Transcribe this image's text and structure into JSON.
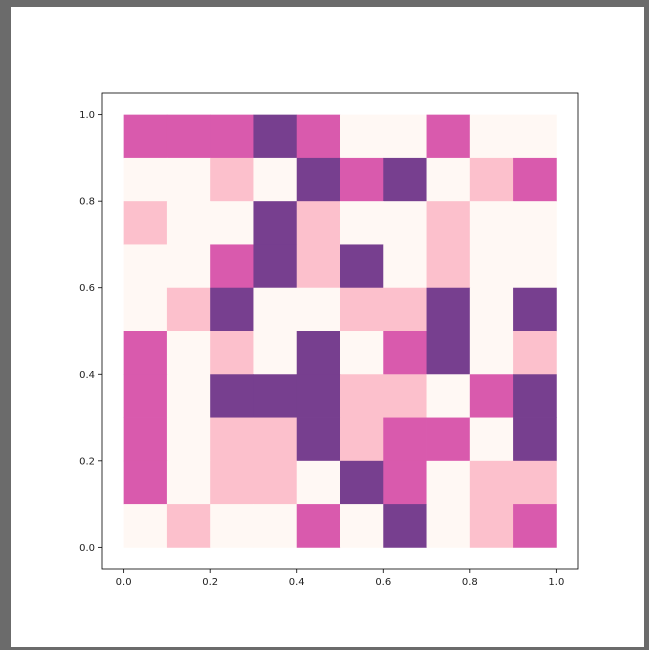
{
  "chart_data": {
    "type": "heatmap",
    "title": "",
    "xlabel": "",
    "ylabel": "",
    "xlim": [
      -0.05,
      1.05
    ],
    "ylim": [
      -0.05,
      1.05
    ],
    "xticks": [
      "0.0",
      "0.2",
      "0.4",
      "0.6",
      "0.8",
      "1.0"
    ],
    "yticks": [
      "0.0",
      "0.2",
      "0.4",
      "0.6",
      "0.8",
      "1.0"
    ],
    "grid": false,
    "cell_extent": [
      0,
      1,
      0,
      1
    ],
    "palette": [
      "#fff8f4",
      "#fcc0cc",
      "#d95aad",
      "#773f8f"
    ],
    "rows_top_to_bottom": [
      [
        2,
        2,
        2,
        3,
        2,
        0,
        0,
        2,
        0,
        0
      ],
      [
        0,
        0,
        1,
        0,
        3,
        2,
        3,
        0,
        1,
        2
      ],
      [
        1,
        0,
        0,
        3,
        1,
        0,
        0,
        1,
        0,
        0
      ],
      [
        0,
        0,
        2,
        3,
        1,
        3,
        0,
        1,
        0,
        0
      ],
      [
        0,
        1,
        3,
        0,
        0,
        1,
        1,
        3,
        0,
        3
      ],
      [
        2,
        0,
        1,
        0,
        3,
        0,
        2,
        3,
        0,
        1
      ],
      [
        2,
        0,
        3,
        3,
        3,
        1,
        1,
        0,
        2,
        3
      ],
      [
        2,
        0,
        1,
        1,
        3,
        1,
        2,
        2,
        0,
        3
      ],
      [
        2,
        0,
        1,
        1,
        0,
        3,
        2,
        0,
        1,
        1
      ],
      [
        0,
        1,
        0,
        0,
        2,
        0,
        3,
        0,
        1,
        2
      ]
    ]
  }
}
